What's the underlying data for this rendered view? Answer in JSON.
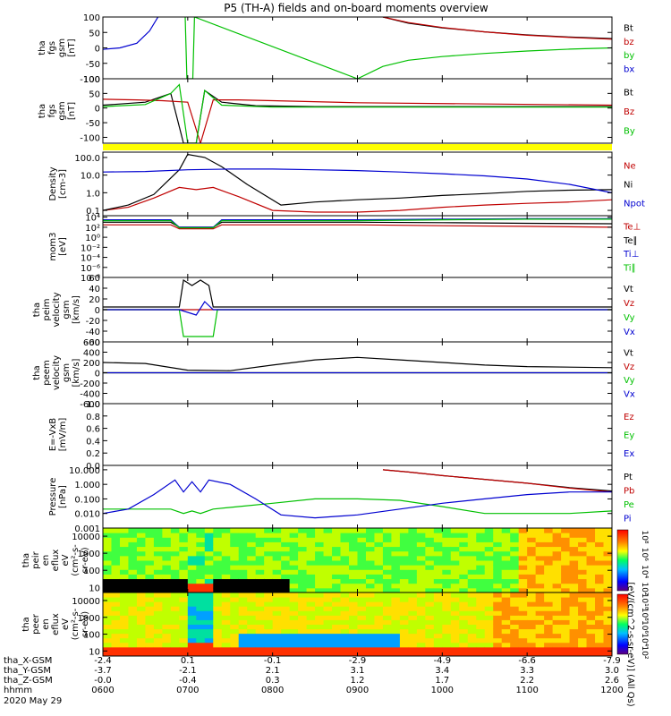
{
  "title": "P5 (TH-A) fields and on-board moments overview",
  "colors": {
    "black": "#000000",
    "red": "#c00000",
    "green": "#00c000",
    "blue": "#0000d0",
    "yellow": "#ffff00"
  },
  "time_axis": {
    "ticks": [
      "0600",
      "0700",
      "0800",
      "0900",
      "1000",
      "1100",
      "1200"
    ],
    "date_label": "2020 May 29",
    "rows": [
      {
        "label": "tha_X-GSM",
        "values": [
          "-2.4",
          "0.1",
          "-0.1",
          "-2.9",
          "-4.9",
          "-6.6",
          "-7.9"
        ]
      },
      {
        "label": "tha_Y-GSM",
        "values": [
          "-3.7",
          "-2.1",
          "2.1",
          "3.1",
          "3.4",
          "3.3",
          "3.0"
        ]
      },
      {
        "label": "tha_Z-GSM",
        "values": [
          "-0.0",
          "-0.4",
          "0.3",
          "1.2",
          "1.7",
          "2.2",
          "2.6"
        ]
      },
      {
        "label": "hhmm",
        "values": [
          "0600",
          "0700",
          "0800",
          "0900",
          "1000",
          "1100",
          "1200"
        ]
      }
    ]
  },
  "spectrogram_colorbar_label": "[eV/(cm^2-s-sr-eV)] (All Qs)",
  "chart_data": [
    {
      "type": "line",
      "id": "fgs",
      "ylabel": [
        "tha",
        "fgs",
        "gsm",
        "[nT]"
      ],
      "ylim": [
        -100,
        100
      ],
      "ticks": [
        "100",
        "50",
        "0",
        "-50",
        "-100"
      ],
      "tick_values": [
        100,
        50,
        0,
        -50,
        -100
      ],
      "series": [
        {
          "name": "Bt",
          "color": "#000000",
          "x": [
            9.3,
            9.6,
            10,
            10.5,
            11,
            11.5,
            12
          ],
          "y": [
            100,
            80,
            65,
            52,
            42,
            35,
            30
          ]
        },
        {
          "name": "bz",
          "color": "#c00000",
          "x": [
            9.3,
            9.6,
            10,
            10.5,
            11,
            11.5,
            12
          ],
          "y": [
            100,
            82,
            66,
            52,
            41,
            34,
            28
          ]
        },
        {
          "name": "by",
          "color": "#00c000",
          "x": [
            6.97,
            6.99,
            7.06,
            7.08,
            9,
            9.3,
            9.6,
            10,
            10.5,
            11,
            11.5,
            12
          ],
          "y": [
            100,
            -100,
            -100,
            100,
            -100,
            -60,
            -40,
            -28,
            -18,
            -10,
            -4,
            0
          ]
        },
        {
          "name": "bx",
          "color": "#0000d0",
          "x": [
            6,
            6.2,
            6.4,
            6.55,
            6.65
          ],
          "y": [
            -5,
            0,
            15,
            55,
            100
          ]
        }
      ]
    },
    {
      "type": "line",
      "id": "fgs-dsl",
      "ylabel": [
        "tha",
        "fgs",
        "gsm",
        "[nT]"
      ],
      "ylim": [
        -120,
        100
      ],
      "ticks": [
        "100",
        "50",
        "0",
        "-50",
        "-100"
      ],
      "tick_values": [
        100,
        50,
        0,
        -50,
        -100
      ],
      "series": [
        {
          "name": "Bt",
          "color": "#000000",
          "x": [
            6,
            6.5,
            6.8,
            6.95,
            7.1,
            7.2,
            7.4,
            7.8,
            8.5,
            12
          ],
          "y": [
            10,
            20,
            50,
            -120,
            -120,
            60,
            20,
            8,
            5,
            5
          ]
        },
        {
          "name": "Bz",
          "color": "#c00000",
          "x": [
            6,
            6.4,
            6.7,
            7.0,
            7.15,
            7.3,
            7.6,
            8,
            9,
            12
          ],
          "y": [
            30,
            28,
            25,
            20,
            -120,
            28,
            28,
            25,
            18,
            10
          ]
        },
        {
          "name": "By",
          "color": "#00c000",
          "x": [
            6,
            6.5,
            6.8,
            6.9,
            7.0,
            7.1,
            7.2,
            7.4,
            8,
            12
          ],
          "y": [
            5,
            12,
            50,
            80,
            -120,
            -120,
            60,
            10,
            3,
            3
          ]
        }
      ]
    },
    {
      "type": "line",
      "id": "density",
      "ylabel": [
        "Density",
        "[cm-3]"
      ],
      "ylim": [
        0.05,
        200
      ],
      "scale": "log",
      "ticks": [
        "100.0",
        "10.0",
        "1.0",
        "0.1"
      ],
      "tick_values": [
        100,
        10,
        1,
        0.1
      ],
      "series": [
        {
          "name": "Ne",
          "color": "#c00000",
          "x": [
            6,
            6.3,
            6.6,
            6.9,
            7.1,
            7.3,
            7.6,
            8,
            8.5,
            9,
            9.5,
            10,
            10.5,
            11,
            11.5,
            12
          ],
          "y": [
            0.1,
            0.15,
            0.5,
            2,
            1.5,
            2,
            0.6,
            0.1,
            0.08,
            0.08,
            0.1,
            0.15,
            0.2,
            0.25,
            0.3,
            0.4
          ]
        },
        {
          "name": "Ni",
          "color": "#000000",
          "x": [
            6,
            6.3,
            6.6,
            6.9,
            7.0,
            7.2,
            7.4,
            7.7,
            8.1,
            8.5,
            9,
            9.5,
            10,
            10.5,
            11,
            11.5,
            12
          ],
          "y": [
            0.1,
            0.2,
            0.8,
            20,
            150,
            100,
            30,
            3,
            0.2,
            0.3,
            0.4,
            0.5,
            0.7,
            0.9,
            1.2,
            1.4,
            1.5
          ]
        },
        {
          "name": "Npot",
          "color": "#0000d0",
          "x": [
            6,
            6.5,
            7,
            7.5,
            8,
            8.5,
            9,
            9.5,
            10,
            10.5,
            11,
            11.5,
            12
          ],
          "y": [
            15,
            16,
            20,
            22,
            22,
            20,
            18,
            15,
            12,
            9,
            6,
            3,
            1
          ]
        }
      ]
    },
    {
      "type": "line",
      "id": "temperature",
      "ylabel": [
        "mom3",
        "[eV]"
      ],
      "ylim": [
        1e-08,
        20000
      ],
      "scale": "log",
      "ticks": [
        "10⁴",
        "10²",
        "10⁰",
        "10⁻²",
        "10⁻⁴",
        "10⁻⁶",
        "10⁻⁸"
      ],
      "tick_values": [
        10000,
        100,
        1,
        0.01,
        0.0001,
        1e-06,
        1e-08
      ],
      "series": [
        {
          "name": "Te⊥",
          "color": "#c00000",
          "x": [
            6,
            6.8,
            6.9,
            7.3,
            7.4,
            9,
            10,
            11,
            12
          ],
          "y": [
            300,
            300,
            50,
            50,
            300,
            300,
            200,
            150,
            100
          ]
        },
        {
          "name": "Te∥",
          "color": "#000000",
          "x": [
            6,
            6.8,
            6.9,
            7.3,
            7.4,
            9,
            10,
            11,
            12
          ],
          "y": [
            1000,
            1000,
            100,
            100,
            1000,
            1000,
            800,
            600,
            500
          ]
        },
        {
          "name": "Ti⊥",
          "color": "#0000d0",
          "x": [
            6,
            6.8,
            6.9,
            7.3,
            7.4,
            9,
            10,
            11,
            12
          ],
          "y": [
            3000,
            3000,
            100,
            100,
            3000,
            3000,
            4000,
            5000,
            5000
          ]
        },
        {
          "name": "Ti∥",
          "color": "#00c000",
          "x": [
            6,
            6.8,
            6.9,
            7.3,
            7.4,
            9,
            10,
            11,
            12
          ],
          "y": [
            2000,
            2000,
            80,
            80,
            2000,
            2000,
            3000,
            4000,
            4000
          ]
        }
      ]
    },
    {
      "type": "line",
      "id": "peim",
      "ylabel": [
        "tha",
        "peim",
        "velocity",
        "gsm",
        "[km/s]"
      ],
      "ylim": [
        -60,
        60
      ],
      "ticks": [
        "60",
        "40",
        "20",
        "0",
        "-20",
        "-40",
        "-60"
      ],
      "tick_values": [
        60,
        40,
        20,
        0,
        -20,
        -40,
        -60
      ],
      "series": [
        {
          "name": "Vt",
          "color": "#000000",
          "x": [
            6,
            6.9,
            6.95,
            7.05,
            7.15,
            7.25,
            7.3,
            12
          ],
          "y": [
            5,
            5,
            55,
            45,
            55,
            45,
            5,
            5
          ]
        },
        {
          "name": "Vz",
          "color": "#c00000",
          "x": [
            6,
            12
          ],
          "y": [
            0,
            0
          ]
        },
        {
          "name": "Vy",
          "color": "#00c000",
          "x": [
            6,
            6.9,
            6.95,
            7.3,
            7.35,
            12
          ],
          "y": [
            0,
            0,
            -50,
            -50,
            0,
            0
          ]
        },
        {
          "name": "Vx",
          "color": "#0000d0",
          "x": [
            6,
            6.9,
            7.1,
            7.2,
            7.3,
            12
          ],
          "y": [
            0,
            0,
            -10,
            15,
            0,
            0
          ]
        }
      ]
    },
    {
      "type": "line",
      "id": "peem",
      "ylabel": [
        "tha",
        "peem",
        "velocity",
        "gsm",
        "[km/s]"
      ],
      "ylim": [
        -600,
        600
      ],
      "ticks": [
        "600",
        "400",
        "200",
        "0",
        "-200",
        "-400",
        "-600"
      ],
      "tick_values": [
        600,
        400,
        200,
        0,
        -200,
        -400,
        -600
      ],
      "series": [
        {
          "name": "Vt",
          "color": "#000000",
          "x": [
            6,
            6.5,
            7,
            7.5,
            8,
            8.5,
            9,
            9.5,
            10,
            10.5,
            11,
            12
          ],
          "y": [
            200,
            180,
            50,
            40,
            150,
            250,
            300,
            250,
            200,
            150,
            120,
            100
          ]
        },
        {
          "name": "Vz",
          "color": "#c00000",
          "x": [
            6,
            12
          ],
          "y": [
            0,
            0
          ]
        },
        {
          "name": "Vy",
          "color": "#00c000",
          "x": [
            6,
            12
          ],
          "y": [
            0,
            0
          ]
        },
        {
          "name": "Vx",
          "color": "#0000d0",
          "x": [
            6,
            12
          ],
          "y": [
            0,
            0
          ]
        }
      ]
    },
    {
      "type": "line",
      "id": "efield",
      "ylabel": [
        "E=-VxB",
        "[mV/m]"
      ],
      "ylim": [
        0,
        1
      ],
      "ticks": [
        "1.0",
        "0.8",
        "0.6",
        "0.4",
        "0.2",
        "0.0"
      ],
      "tick_values": [
        1,
        0.8,
        0.6,
        0.4,
        0.2,
        0
      ],
      "series": [
        {
          "name": "Ez",
          "color": "#c00000",
          "x": [],
          "y": []
        },
        {
          "name": "Ey",
          "color": "#00c000",
          "x": [],
          "y": []
        },
        {
          "name": "Ex",
          "color": "#0000d0",
          "x": [],
          "y": []
        }
      ]
    },
    {
      "type": "line",
      "id": "pressure",
      "ylabel": [
        "Pressure",
        "[nPa]"
      ],
      "ylim": [
        0.001,
        20
      ],
      "scale": "log",
      "ticks": [
        "10.000",
        "1.000",
        "0.100",
        "0.010",
        "0.001"
      ],
      "tick_values": [
        10,
        1,
        0.1,
        0.01,
        0.001
      ],
      "series": [
        {
          "name": "Pt",
          "color": "#000000",
          "x": [
            9.3,
            9.6,
            10,
            10.5,
            11,
            11.5,
            12
          ],
          "y": [
            10,
            7,
            4,
            2.2,
            1.2,
            0.6,
            0.35
          ]
        },
        {
          "name": "Pb",
          "color": "#c00000",
          "x": [
            9.3,
            9.6,
            10,
            10.5,
            11,
            11.5,
            12
          ],
          "y": [
            10,
            7,
            4,
            2.2,
            1.2,
            0.55,
            0.3
          ]
        },
        {
          "name": "Pe",
          "color": "#00c000",
          "x": [
            6,
            6.5,
            6.8,
            6.95,
            7.05,
            7.15,
            7.3,
            7.6,
            8,
            8.5,
            9,
            9.5,
            10,
            10.5,
            11,
            11.5,
            12
          ],
          "y": [
            0.02,
            0.02,
            0.02,
            0.01,
            0.015,
            0.01,
            0.02,
            0.03,
            0.05,
            0.1,
            0.1,
            0.08,
            0.03,
            0.01,
            0.01,
            0.01,
            0.015
          ]
        },
        {
          "name": "Pi",
          "color": "#0000d0",
          "x": [
            6,
            6.3,
            6.6,
            6.85,
            6.95,
            7.05,
            7.15,
            7.25,
            7.5,
            7.8,
            8.1,
            8.5,
            9,
            9.5,
            10,
            10.5,
            11,
            11.5,
            12
          ],
          "y": [
            0.01,
            0.02,
            0.2,
            2,
            0.3,
            1.5,
            0.3,
            2,
            1,
            0.1,
            0.008,
            0.005,
            0.008,
            0.02,
            0.05,
            0.1,
            0.2,
            0.3,
            0.3
          ]
        }
      ]
    },
    {
      "type": "heatmap",
      "id": "peir",
      "ylabel": [
        "tha",
        "peir",
        "en",
        "eflux",
        "eV",
        "(cm²-s-",
        "sr-eV)"
      ],
      "ylim": [
        5,
        30000
      ],
      "scale": "log",
      "ticks": [
        "10000",
        "1000",
        "100",
        "10"
      ],
      "tick_values": [
        10000,
        1000,
        100,
        10
      ],
      "colorbar": {
        "labels": [
          "10⁸",
          "10⁶",
          "10⁴",
          "10²"
        ]
      }
    },
    {
      "type": "heatmap",
      "id": "peer",
      "ylabel": [
        "tha",
        "peer",
        "en",
        "eflux",
        "eV",
        "(cm²-s-",
        "sr-eV)"
      ],
      "ylim": [
        5,
        30000
      ],
      "scale": "log",
      "ticks": [
        "10000",
        "1000",
        "100",
        "10"
      ],
      "tick_values": [
        10000,
        1000,
        100,
        10
      ],
      "colorbar": {
        "labels": [
          "10¹⁰",
          "10⁸",
          "10⁶",
          "10⁴",
          "10²"
        ]
      }
    }
  ]
}
